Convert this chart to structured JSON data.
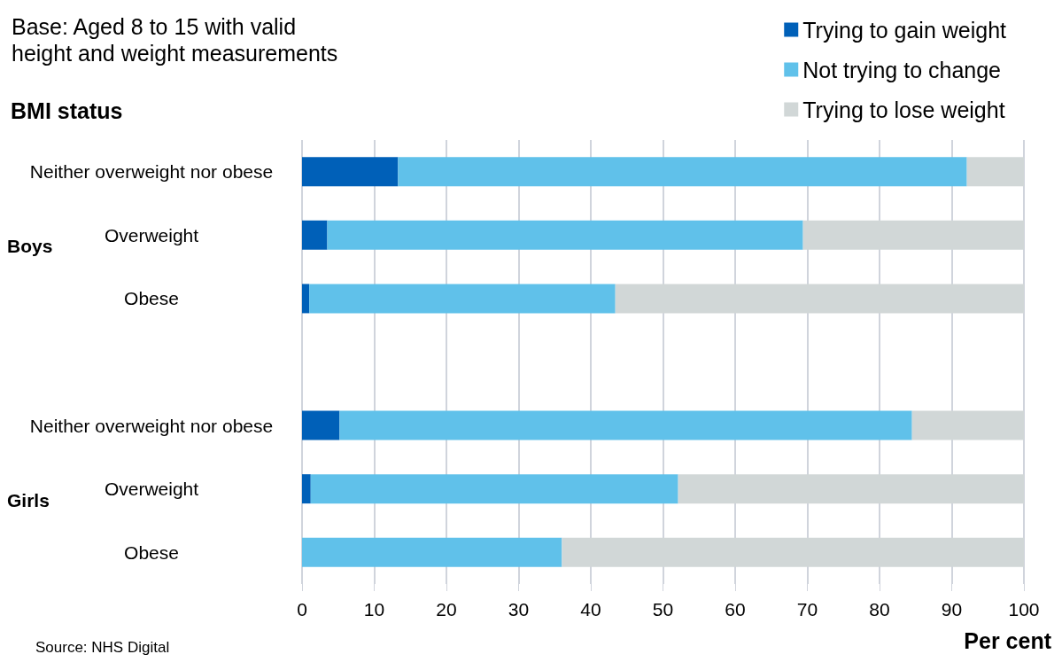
{
  "chart_data": {
    "type": "bar",
    "orientation": "horizontal",
    "stacked": true,
    "title": "Base: Aged 8 to 15 with valid height and weight measurements",
    "ylabel": "BMI status",
    "xlabel": "Per cent",
    "categories": [
      "Neither overweight nor obese",
      "Overweight",
      "Obese",
      null,
      "Neither overweight nor obese",
      "Overweight",
      "Obese"
    ],
    "series": [
      {
        "name": "Trying to gain weight",
        "color": "#0060b8",
        "values": [
          13.3,
          3.5,
          1.0,
          null,
          5.2,
          1.2,
          0
        ]
      },
      {
        "name": "Not trying to change",
        "color": "#60c1ea",
        "values": [
          78.8,
          65.9,
          42.4,
          null,
          79.3,
          50.9,
          36.0
        ]
      },
      {
        "name": "Trying to lose weight",
        "color": "#d1d7d7",
        "values": [
          7.9,
          30.6,
          56.6,
          null,
          15.5,
          47.9,
          64.0
        ]
      }
    ],
    "xlim": [
      0,
      100
    ],
    "xticks": [
      0,
      10,
      20,
      30,
      40,
      50,
      60,
      70,
      80,
      90,
      100
    ],
    "grid": "x",
    "legend": "top right",
    "annotations": [
      "Boys",
      "Girls",
      "Source: NHS Digital"
    ]
  }
}
